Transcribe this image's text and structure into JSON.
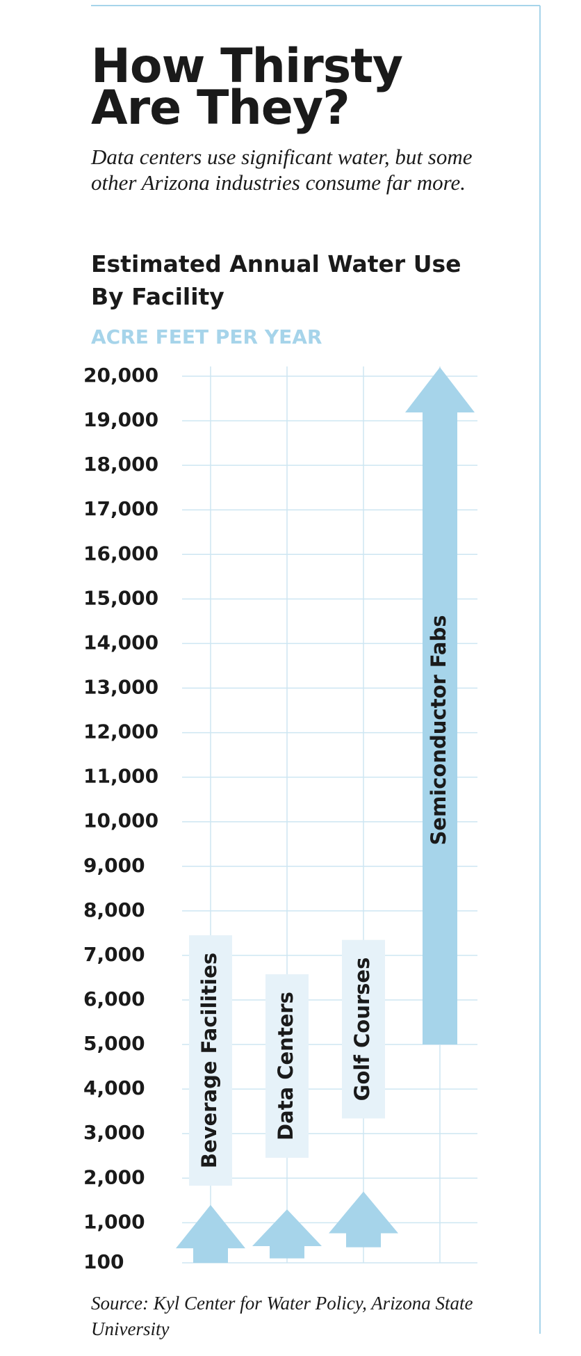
{
  "chart_data": {
    "type": "range-arrow",
    "title": "How Thirsty Are They?",
    "subtitle": "Data centers use significant water, but some other Arizona industries consume far more.",
    "chart_title": "Estimated Annual Water Use By Facility",
    "y_label": "ACRE FEET PER YEAR",
    "source": "Source: Kyl Center for Water Policy, Arizona State University",
    "categories": [
      "Beverage Facilities",
      "Data Centers",
      "Golf Courses",
      "Semiconductor Fabs"
    ],
    "low": [
      100,
      200,
      450,
      5000
    ],
    "high": [
      1400,
      1300,
      1700,
      20200
    ],
    "color": "#a6d4ea",
    "ylim": [
      100,
      20000
    ],
    "yticks": [
      100,
      {
        "value": 1000,
        "label": "1,000"
      },
      {
        "value": 2000,
        "label": "2,000"
      },
      {
        "value": 3000,
        "label": "3,000"
      },
      {
        "value": 4000,
        "label": "4,000"
      },
      {
        "value": 5000,
        "label": "5,000"
      },
      {
        "value": 6000,
        "label": "6,000"
      },
      {
        "value": 7000,
        "label": "7,000"
      },
      {
        "value": 8000,
        "label": "8,000"
      },
      {
        "value": 9000,
        "label": "9,000"
      },
      {
        "value": 10000,
        "label": "10,000"
      },
      {
        "value": 11000,
        "label": "11,000"
      },
      {
        "value": 12000,
        "label": "12,000"
      },
      {
        "value": 13000,
        "label": "13,000"
      },
      {
        "value": 14000,
        "label": "14,000"
      },
      {
        "value": 15000,
        "label": "15,000"
      },
      {
        "value": 16000,
        "label": "16,000"
      },
      {
        "value": 17000,
        "label": "17,000"
      },
      {
        "value": 18000,
        "label": "18,000"
      },
      {
        "value": 19000,
        "label": "19,000"
      },
      {
        "value": 20000,
        "label": "20,000"
      }
    ],
    "grid": true
  }
}
